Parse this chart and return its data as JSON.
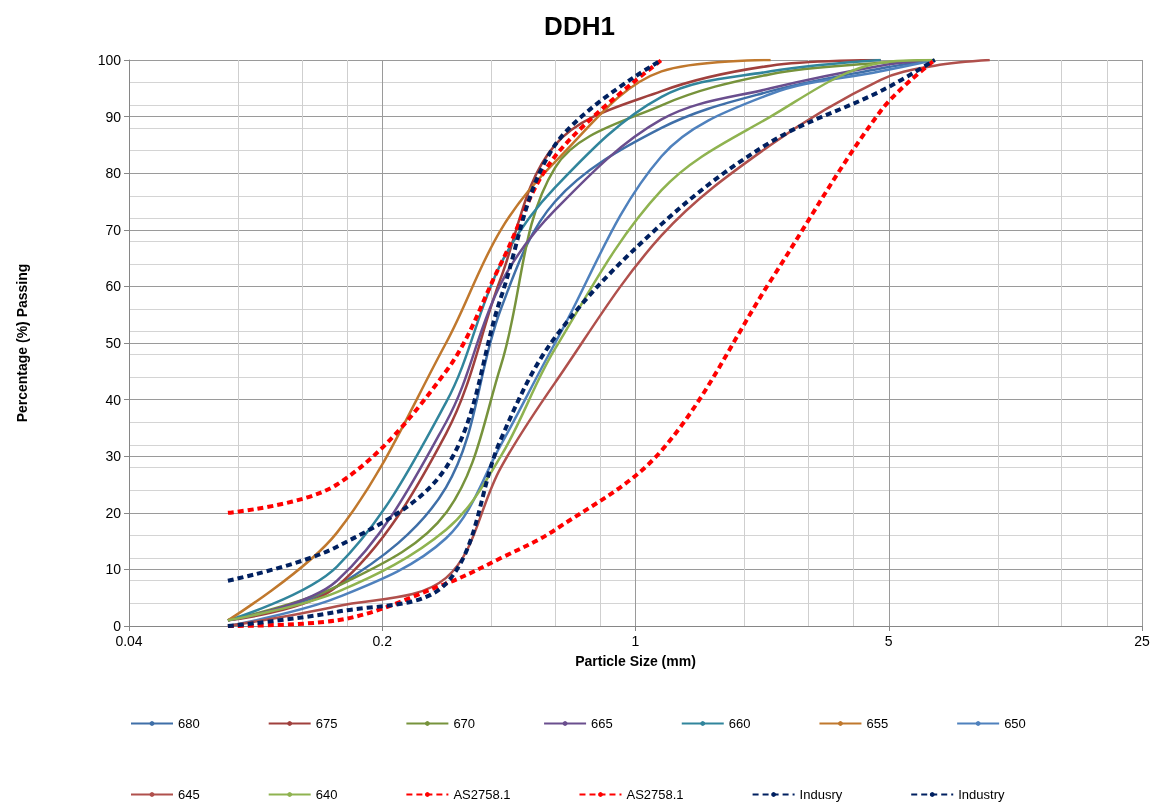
{
  "chart_data": {
    "type": "line",
    "title": "DDH1",
    "xlabel": "Particle Size (mm)",
    "ylabel": "Percentage (%) Passing",
    "x": [
      0.075,
      0.15,
      0.3,
      0.425,
      0.6,
      1.18,
      2.36,
      4.75,
      6.7,
      9.5
    ],
    "series": [
      {
        "name": "680",
        "color": "#3f6fa8",
        "values": [
          1,
          7,
          24.5,
          56,
          75,
          88,
          94.5,
          98.5,
          100,
          null
        ]
      },
      {
        "name": "675",
        "color": "#a0403d",
        "values": [
          1,
          7,
          34,
          61.5,
          85,
          94.5,
          99,
          100,
          null,
          null
        ]
      },
      {
        "name": "670",
        "color": "#77933c",
        "values": [
          1,
          7,
          20,
          46,
          81,
          92,
          97.5,
          99.5,
          100,
          null
        ]
      },
      {
        "name": "665",
        "color": "#6a4e8e",
        "values": [
          1,
          8,
          36,
          60.5,
          73.5,
          89.5,
          95,
          99,
          100,
          null
        ]
      },
      {
        "name": "660",
        "color": "#31859c",
        "values": [
          1,
          10.5,
          39.5,
          64,
          77.5,
          93.5,
          98,
          100,
          null,
          null
        ]
      },
      {
        "name": "655",
        "color": "#c0782d",
        "values": [
          1,
          16.5,
          50,
          70,
          82,
          98,
          100,
          null,
          null,
          null
        ]
      },
      {
        "name": "650",
        "color": "#4f81bd",
        "values": [
          0,
          5,
          15.5,
          32,
          50,
          83,
          94,
          98,
          100,
          null
        ]
      },
      {
        "name": "645",
        "color": "#b0504c",
        "values": [
          0,
          3.5,
          8.5,
          28,
          43,
          69,
          85,
          96.5,
          99,
          100
        ]
      },
      {
        "name": "640",
        "color": "#8fb350",
        "values": [
          1,
          6,
          17,
          30,
          49,
          77,
          90,
          99.5,
          100,
          null
        ]
      },
      {
        "name": "AS2758.1",
        "color": "#ff0000",
        "line_style": "dashed",
        "values": [
          20,
          25,
          45,
          64,
          83,
          100,
          null,
          null,
          null,
          null
        ]
      },
      {
        "name": "AS2758.1",
        "color": "#ff0000",
        "line_style": "dashed",
        "values": [
          0,
          1,
          7.5,
          12,
          17,
          31,
          61,
          91,
          100,
          null
        ]
      },
      {
        "name": "Indusry",
        "color": "#002060",
        "line_style": "dashed",
        "values": [
          8,
          14,
          28,
          58,
          85,
          100,
          null,
          null,
          null,
          null
        ]
      },
      {
        "name": "Industry",
        "color": "#002060",
        "line_style": "dashed",
        "values": [
          0,
          2.5,
          7.5,
          33,
          51,
          71,
          85.5,
          94.5,
          100,
          null
        ]
      }
    ],
    "xlim": [
      0.04,
      25
    ],
    "xticks": [
      0.04,
      0.2,
      1,
      5,
      25
    ],
    "ylim": [
      0,
      100
    ],
    "yticks": [
      0,
      10,
      20,
      30,
      40,
      50,
      60,
      70,
      80,
      90,
      100
    ],
    "log": "x",
    "grid": true,
    "legend": "bottom",
    "marker": "none",
    "line_style": "solid"
  }
}
